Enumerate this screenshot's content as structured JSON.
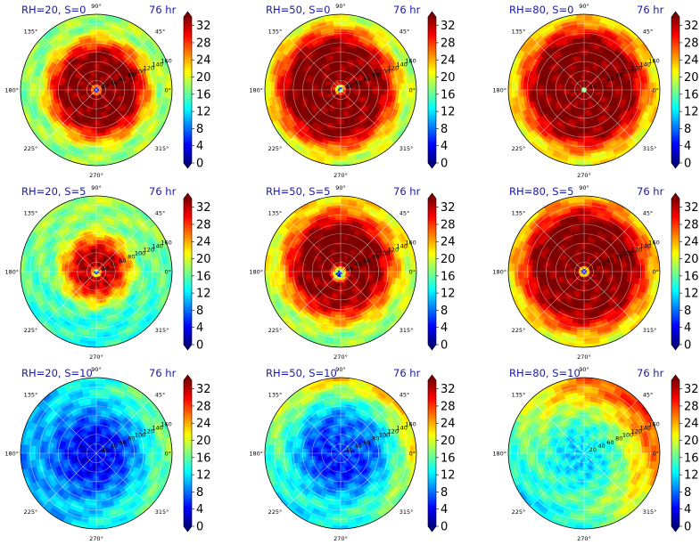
{
  "colors": {
    "title": "#1a1aa8",
    "jet": [
      "#00007f",
      "#0000ff",
      "#007fff",
      "#00ffff",
      "#7fff7f",
      "#ffff00",
      "#ff7f00",
      "#ff0000",
      "#7f0000"
    ]
  },
  "chart_data": [
    {
      "type": "polar-heatmap",
      "title": "RH=20, S=0",
      "time_label": "76 hr",
      "angle_ticks": [
        "0°",
        "45°",
        "90°",
        "135°",
        "180°",
        "225°",
        "270°",
        "315°"
      ],
      "radial_ticks": [
        "20",
        "40",
        "60",
        "80",
        "100",
        "120",
        "140",
        "160"
      ],
      "radial_range": [
        0,
        160
      ],
      "colorbar": {
        "ticks": [
          "0",
          "4",
          "8",
          "12",
          "16",
          "20",
          "24",
          "28",
          "32"
        ],
        "range": [
          0,
          34
        ],
        "extend": "both"
      },
      "field": {
        "eye_radius": 6,
        "eye_offset_angle_deg": 0,
        "eye_offset_r": 0,
        "core_value": 34,
        "core_radius": 75,
        "falloff_width": 55,
        "outer_value": 18,
        "asym_angle_deg": 0,
        "asym_amount": 0.05
      }
    },
    {
      "type": "polar-heatmap",
      "title": "RH=50, S=0",
      "time_label": "76 hr",
      "angle_ticks": [
        "0°",
        "45°",
        "90°",
        "135°",
        "180°",
        "225°",
        "270°",
        "315°"
      ],
      "radial_ticks": [
        "20",
        "40",
        "60",
        "80",
        "100",
        "120",
        "140",
        "160"
      ],
      "radial_range": [
        0,
        160
      ],
      "colorbar": {
        "ticks": [
          "0",
          "4",
          "8",
          "12",
          "16",
          "20",
          "24",
          "28",
          "32"
        ],
        "range": [
          0,
          34
        ],
        "extend": "both"
      },
      "field": {
        "eye_radius": 7,
        "eye_offset_angle_deg": 135,
        "eye_offset_r": 3,
        "core_value": 34,
        "core_radius": 95,
        "falloff_width": 55,
        "outer_value": 20,
        "asym_angle_deg": 180,
        "asym_amount": 0.1
      }
    },
    {
      "type": "polar-heatmap",
      "title": "RH=80, S=0",
      "time_label": "76 hr",
      "angle_ticks": [
        "0°",
        "45°",
        "90°",
        "135°",
        "180°",
        "225°",
        "270°",
        "315°"
      ],
      "radial_ticks": [
        "20",
        "40",
        "60",
        "80",
        "100",
        "120",
        "140",
        "160"
      ],
      "radial_range": [
        0,
        160
      ],
      "colorbar": {
        "ticks": [
          "0",
          "4",
          "8",
          "12",
          "16",
          "20",
          "24",
          "28",
          "32"
        ],
        "range": [
          0,
          34
        ],
        "extend": "both"
      },
      "field": {
        "eye_radius": 4,
        "eye_offset_angle_deg": 0,
        "eye_offset_r": 0,
        "core_value": 34,
        "core_radius": 100,
        "falloff_width": 50,
        "outer_value": 22,
        "asym_angle_deg": 90,
        "asym_amount": 0.05
      }
    },
    {
      "type": "polar-heatmap",
      "title": "RH=20, S=5",
      "time_label": "76 hr",
      "angle_ticks": [
        "0°",
        "45°",
        "90°",
        "135°",
        "180°",
        "225°",
        "270°",
        "315°"
      ],
      "radial_ticks": [
        "20",
        "40",
        "60",
        "80",
        "100",
        "120",
        "140",
        "160"
      ],
      "radial_range": [
        0,
        160
      ],
      "colorbar": {
        "ticks": [
          "0",
          "4",
          "8",
          "12",
          "16",
          "20",
          "24",
          "28",
          "32"
        ],
        "range": [
          0,
          34
        ],
        "extend": "both"
      },
      "field": {
        "eye_radius": 6,
        "eye_offset_angle_deg": 270,
        "eye_offset_r": 2,
        "core_value": 32,
        "core_radius": 40,
        "falloff_width": 55,
        "outer_value": 16,
        "asym_angle_deg": 90,
        "asym_amount": 0.25
      }
    },
    {
      "type": "polar-heatmap",
      "title": "RH=50, S=5",
      "time_label": "76 hr",
      "angle_ticks": [
        "0°",
        "45°",
        "90°",
        "135°",
        "180°",
        "225°",
        "270°",
        "315°"
      ],
      "radial_ticks": [
        "20",
        "40",
        "60",
        "80",
        "100",
        "120",
        "140",
        "160"
      ],
      "radial_range": [
        0,
        160
      ],
      "colorbar": {
        "ticks": [
          "0",
          "4",
          "8",
          "12",
          "16",
          "20",
          "24",
          "28",
          "32"
        ],
        "range": [
          0,
          34
        ],
        "extend": "both"
      },
      "field": {
        "eye_radius": 10,
        "eye_offset_angle_deg": 240,
        "eye_offset_r": 5,
        "core_value": 34,
        "core_radius": 80,
        "falloff_width": 60,
        "outer_value": 20,
        "asym_angle_deg": 90,
        "asym_amount": 0.25
      }
    },
    {
      "type": "polar-heatmap",
      "title": "RH=80, S=5",
      "time_label": "76 hr",
      "angle_ticks": [
        "0°",
        "45°",
        "90°",
        "135°",
        "180°",
        "225°",
        "270°",
        "315°"
      ],
      "radial_ticks": [
        "20",
        "40",
        "60",
        "80",
        "100",
        "120",
        "140",
        "160"
      ],
      "radial_range": [
        0,
        160
      ],
      "colorbar": {
        "ticks": [
          "0",
          "4",
          "8",
          "12",
          "16",
          "20",
          "24",
          "28",
          "32"
        ],
        "range": [
          0,
          34
        ],
        "extend": "both"
      },
      "field": {
        "eye_radius": 7,
        "eye_offset_angle_deg": 0,
        "eye_offset_r": 0,
        "core_value": 34,
        "core_radius": 100,
        "falloff_width": 55,
        "outer_value": 22,
        "asym_angle_deg": 90,
        "asym_amount": 0.1
      }
    },
    {
      "type": "polar-heatmap",
      "title": "RH=20, S=10",
      "time_label": "76 hr",
      "angle_ticks": [
        "0°",
        "45°",
        "90°",
        "135°",
        "180°",
        "225°",
        "270°",
        "315°"
      ],
      "radial_ticks": [
        "20",
        "40",
        "60",
        "80",
        "100",
        "120",
        "140",
        "160"
      ],
      "radial_range": [
        0,
        160
      ],
      "colorbar": {
        "ticks": [
          "0",
          "4",
          "8",
          "12",
          "16",
          "20",
          "24",
          "28",
          "32"
        ],
        "range": [
          0,
          34
        ],
        "extend": "both"
      },
      "field": {
        "eye_radius": 0,
        "eye_offset_angle_deg": 0,
        "eye_offset_r": 0,
        "core_value": 4,
        "core_radius": 40,
        "falloff_width": 90,
        "outer_value": 13,
        "asym_angle_deg": 10,
        "asym_amount": 0.4
      }
    },
    {
      "type": "polar-heatmap",
      "title": "RH=50, S=10",
      "time_label": "76 hr",
      "angle_ticks": [
        "0°",
        "45°",
        "90°",
        "135°",
        "180°",
        "225°",
        "270°",
        "315°"
      ],
      "radial_ticks": [
        "20",
        "40",
        "60",
        "80",
        "100",
        "120",
        "140",
        "160"
      ],
      "radial_range": [
        0,
        160
      ],
      "colorbar": {
        "ticks": [
          "0",
          "4",
          "8",
          "12",
          "16",
          "20",
          "24",
          "28",
          "32"
        ],
        "range": [
          0,
          34
        ],
        "extend": "both"
      },
      "field": {
        "eye_radius": 0,
        "eye_offset_angle_deg": 0,
        "eye_offset_r": 0,
        "core_value": 6,
        "core_radius": 60,
        "falloff_width": 80,
        "outer_value": 18,
        "asym_angle_deg": 60,
        "asym_amount": 0.6
      }
    },
    {
      "type": "polar-heatmap",
      "title": "RH=80, S=10",
      "time_label": "76 hr",
      "angle_ticks": [
        "0°",
        "45°",
        "90°",
        "135°",
        "180°",
        "225°",
        "270°",
        "315°"
      ],
      "radial_ticks": [
        "20",
        "40",
        "60",
        "80",
        "100",
        "120",
        "140",
        "160"
      ],
      "radial_range": [
        0,
        160
      ],
      "colorbar": {
        "ticks": [
          "0",
          "4",
          "8",
          "12",
          "16",
          "20",
          "24",
          "28",
          "32"
        ],
        "range": [
          0,
          34
        ],
        "extend": "both"
      },
      "field": {
        "eye_radius": 0,
        "eye_offset_angle_deg": 0,
        "eye_offset_r": 0,
        "core_value": 12,
        "core_radius": 40,
        "falloff_width": 80,
        "outer_value": 20,
        "asym_angle_deg": 45,
        "asym_amount": 0.8
      }
    }
  ]
}
